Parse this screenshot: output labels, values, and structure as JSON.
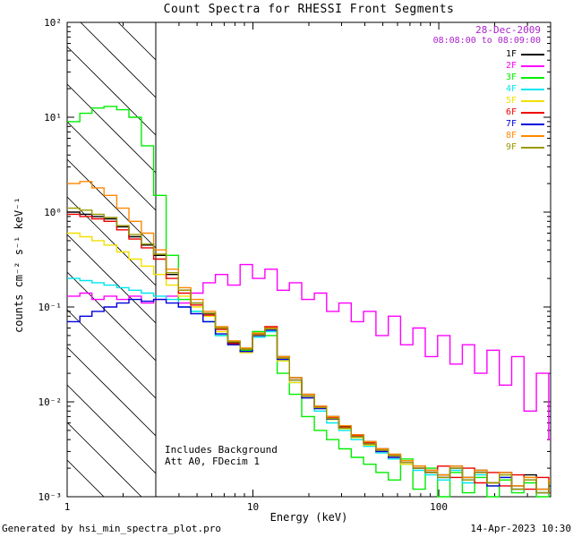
{
  "annotations": {
    "date": "28-Dec-2009",
    "time_range": "08:08:00 to 08:09:00",
    "date_color": "#aa22cc",
    "note1": "Includes Background",
    "note2": "Att A0, FDecim 1"
  },
  "footer": {
    "generated_by": "Generated by hsi_min_spectra_plot.pro",
    "timestamp": "14-Apr-2023 10:30"
  },
  "chart_data": {
    "type": "line",
    "title": "Count Spectra for RHESSI Front Segments",
    "xlabel": "Energy (keV)",
    "ylabel": "counts cm⁻² s⁻¹ keV⁻¹",
    "xscale": "log",
    "yscale": "log",
    "xlim": [
      1,
      400
    ],
    "ylim": [
      0.001,
      100
    ],
    "grid": false,
    "legend_position": "top-right",
    "background": "#ffffff",
    "hatch_region": {
      "x0": 1,
      "x1": 3
    },
    "x_ticks": [
      {
        "v": 1,
        "label": "1"
      },
      {
        "v": 10,
        "label": "10"
      },
      {
        "v": 100,
        "label": "100"
      }
    ],
    "y_ticks": [
      {
        "v": 0.001,
        "label": "10⁻³"
      },
      {
        "v": 0.01,
        "label": "10⁻²"
      },
      {
        "v": 0.1,
        "label": "10⁻¹"
      },
      {
        "v": 1,
        "label": "10⁰"
      },
      {
        "v": 10,
        "label": "10¹"
      },
      {
        "v": 100,
        "label": "10²"
      }
    ],
    "x": [
      1.0,
      1.17,
      1.36,
      1.58,
      1.85,
      2.15,
      2.51,
      2.92,
      3.41,
      3.97,
      4.63,
      5.39,
      6.28,
      7.32,
      8.53,
      9.94,
      11.6,
      13.5,
      15.7,
      18.3,
      21.4,
      24.9,
      29.0,
      33.8,
      39.4,
      45.9,
      53.5,
      62.3,
      72.6,
      84.6,
      98.6,
      114.9,
      133.9,
      156.0,
      181.8,
      211.9,
      246.9,
      287.7,
      335.2,
      390.6
    ],
    "series": [
      {
        "name": "1F",
        "color": "#000000",
        "values": [
          1.0,
          0.95,
          0.9,
          0.85,
          0.7,
          0.55,
          0.45,
          0.35,
          0.22,
          0.15,
          0.11,
          0.085,
          0.06,
          0.042,
          0.035,
          0.05,
          0.06,
          0.03,
          0.018,
          0.012,
          0.009,
          0.007,
          0.0055,
          0.0045,
          0.0038,
          0.0032,
          0.0028,
          0.0024,
          0.0021,
          0.0019,
          0.0017,
          0.0021,
          0.0016,
          0.0019,
          0.0014,
          0.0018,
          0.0013,
          0.0017,
          0.0012,
          0.0015
        ]
      },
      {
        "name": "2F",
        "color": "#ff00ff",
        "values": [
          0.13,
          0.14,
          0.12,
          0.13,
          0.12,
          0.13,
          0.11,
          0.12,
          0.13,
          0.11,
          0.14,
          0.18,
          0.22,
          0.17,
          0.28,
          0.2,
          0.25,
          0.15,
          0.18,
          0.12,
          0.14,
          0.09,
          0.11,
          0.07,
          0.09,
          0.05,
          0.08,
          0.04,
          0.06,
          0.03,
          0.05,
          0.025,
          0.04,
          0.02,
          0.035,
          0.015,
          0.03,
          0.008,
          0.02,
          0.004
        ]
      },
      {
        "name": "3F",
        "color": "#00ee00",
        "values": [
          9.0,
          11.0,
          12.5,
          13.0,
          12.0,
          10.0,
          5.0,
          1.5,
          0.35,
          0.12,
          0.09,
          0.07,
          0.05,
          0.04,
          0.035,
          0.055,
          0.05,
          0.02,
          0.012,
          0.007,
          0.005,
          0.004,
          0.0032,
          0.0026,
          0.0022,
          0.0018,
          0.0015,
          0.0025,
          0.0012,
          0.002,
          0.001,
          0.0018,
          0.0011,
          0.0016,
          0.001,
          0.0015,
          0.0011,
          0.0014,
          0.001,
          0.0013
        ]
      },
      {
        "name": "4F",
        "color": "#00e5ee",
        "values": [
          0.2,
          0.19,
          0.18,
          0.17,
          0.16,
          0.15,
          0.14,
          0.13,
          0.12,
          0.1,
          0.09,
          0.07,
          0.05,
          0.04,
          0.034,
          0.048,
          0.055,
          0.028,
          0.016,
          0.011,
          0.008,
          0.006,
          0.005,
          0.004,
          0.0034,
          0.0029,
          0.0025,
          0.0022,
          0.0019,
          0.0017,
          0.0015,
          0.0019,
          0.0014,
          0.0017,
          0.0013,
          0.0016,
          0.0012,
          0.0015,
          0.0011,
          0.0014
        ]
      },
      {
        "name": "5F",
        "color": "#f2e000",
        "values": [
          0.6,
          0.55,
          0.5,
          0.45,
          0.38,
          0.32,
          0.27,
          0.22,
          0.17,
          0.13,
          0.1,
          0.08,
          0.055,
          0.04,
          0.033,
          0.05,
          0.058,
          0.027,
          0.016,
          0.011,
          0.0085,
          0.0065,
          0.0052,
          0.0042,
          0.0035,
          0.003,
          0.0026,
          0.0022,
          0.002,
          0.0018,
          0.0016,
          0.002,
          0.0015,
          0.0018,
          0.0013,
          0.0017,
          0.0012,
          0.0016,
          0.0011,
          0.0014
        ]
      },
      {
        "name": "6F",
        "color": "#ee0000",
        "values": [
          0.95,
          0.9,
          0.85,
          0.8,
          0.65,
          0.52,
          0.42,
          0.32,
          0.2,
          0.14,
          0.105,
          0.082,
          0.058,
          0.041,
          0.036,
          0.052,
          0.062,
          0.029,
          0.017,
          0.0115,
          0.0088,
          0.0068,
          0.0054,
          0.0044,
          0.0037,
          0.0031,
          0.0027,
          0.0023,
          0.002,
          0.0018,
          0.0021,
          0.0016,
          0.002,
          0.0014,
          0.0018,
          0.0013,
          0.0017,
          0.0012,
          0.0016,
          0.0011
        ]
      },
      {
        "name": "7F",
        "color": "#0000dd",
        "values": [
          0.07,
          0.08,
          0.09,
          0.1,
          0.11,
          0.12,
          0.115,
          0.12,
          0.11,
          0.1,
          0.085,
          0.07,
          0.052,
          0.04,
          0.034,
          0.05,
          0.057,
          0.028,
          0.017,
          0.011,
          0.0085,
          0.0066,
          0.0053,
          0.0043,
          0.0036,
          0.003,
          0.0026,
          0.0023,
          0.002,
          0.0018,
          0.0016,
          0.002,
          0.0015,
          0.0018,
          0.0013,
          0.0016,
          0.0012,
          0.0015,
          0.0011,
          0.0013
        ]
      },
      {
        "name": "8F",
        "color": "#ff8800",
        "values": [
          2.0,
          2.1,
          1.8,
          1.5,
          1.1,
          0.8,
          0.6,
          0.4,
          0.25,
          0.16,
          0.12,
          0.09,
          0.062,
          0.044,
          0.037,
          0.053,
          0.06,
          0.03,
          0.018,
          0.012,
          0.009,
          0.007,
          0.0056,
          0.0045,
          0.0038,
          0.0032,
          0.0028,
          0.0024,
          0.0021,
          0.0019,
          0.0017,
          0.0021,
          0.0016,
          0.0019,
          0.0014,
          0.0018,
          0.0013,
          0.0016,
          0.0012,
          0.0015
        ]
      },
      {
        "name": "9F",
        "color": "#999900",
        "values": [
          1.1,
          1.05,
          0.95,
          0.88,
          0.72,
          0.58,
          0.46,
          0.36,
          0.23,
          0.15,
          0.11,
          0.086,
          0.06,
          0.043,
          0.036,
          0.051,
          0.059,
          0.029,
          0.017,
          0.0115,
          0.0087,
          0.0067,
          0.0053,
          0.0043,
          0.0036,
          0.0031,
          0.0027,
          0.0023,
          0.002,
          0.0018,
          0.0016,
          0.002,
          0.0015,
          0.0018,
          0.0014,
          0.0017,
          0.0012,
          0.0015,
          0.0011,
          0.0014
        ]
      }
    ]
  }
}
